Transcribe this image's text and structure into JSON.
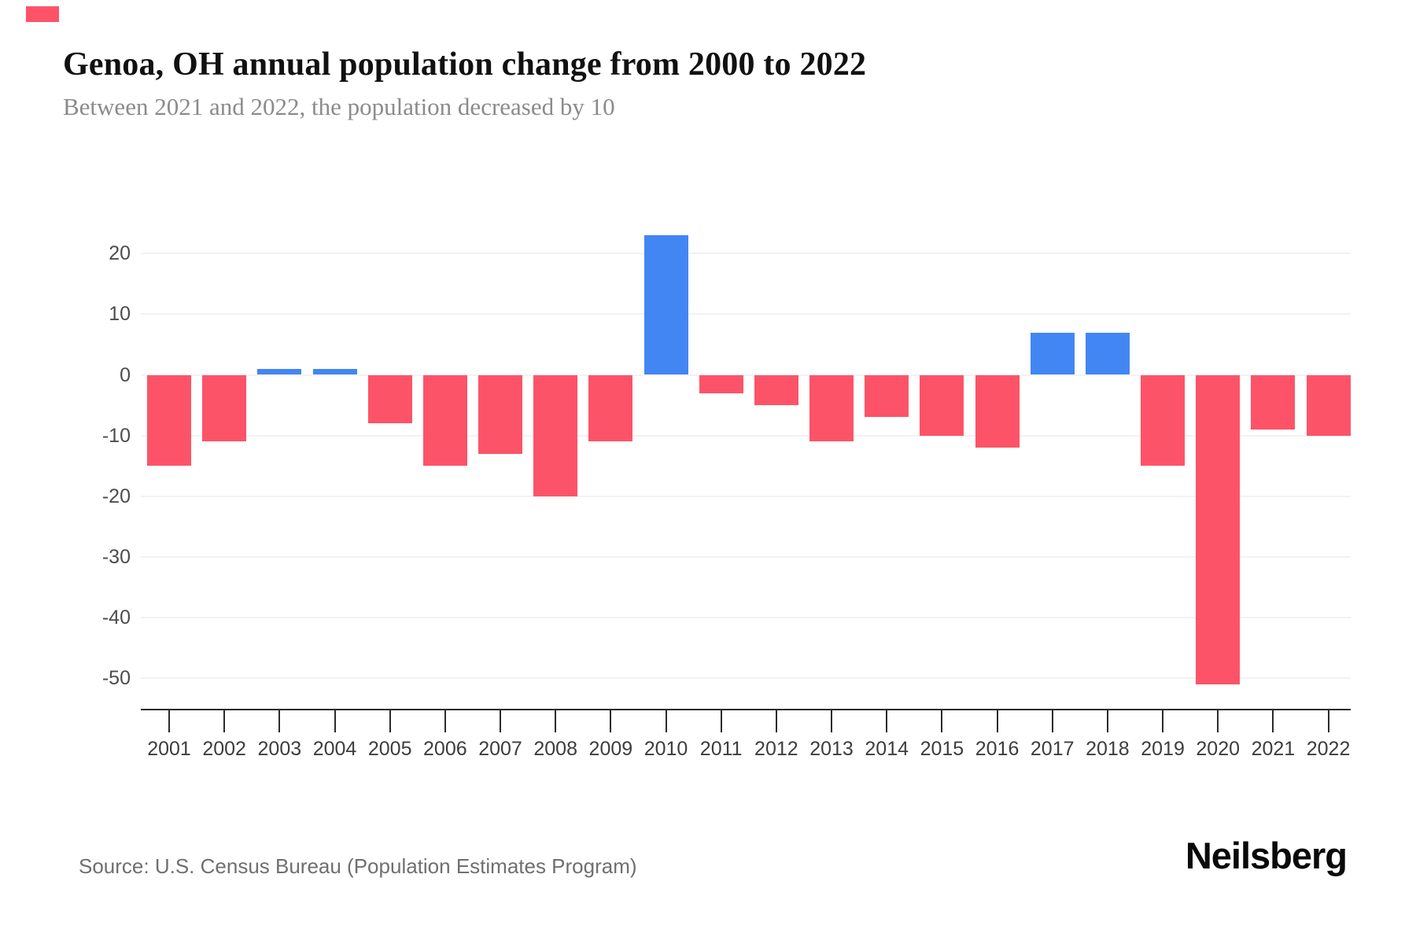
{
  "header": {
    "title": "Genoa, OH annual population change from 2000 to 2022",
    "subtitle": "Between 2021 and 2022, the population decreased by 10"
  },
  "footer": {
    "source": "Source: U.S. Census Bureau (Population Estimates Program)",
    "brand": "Neilsberg"
  },
  "decoration": {
    "corner_marker_color": "#fd5368"
  },
  "chart_data": {
    "type": "bar",
    "title": "Genoa, OH annual population change from 2000 to 2022",
    "subtitle": "Between 2021 and 2022, the population decreased by 10",
    "xlabel": "",
    "ylabel": "",
    "categories": [
      "2001",
      "2002",
      "2003",
      "2004",
      "2005",
      "2006",
      "2007",
      "2008",
      "2009",
      "2010",
      "2011",
      "2012",
      "2013",
      "2014",
      "2015",
      "2016",
      "2017",
      "2018",
      "2019",
      "2020",
      "2021",
      "2022"
    ],
    "values": [
      -15,
      -11,
      1,
      1,
      -8,
      -15,
      -13,
      -20,
      -11,
      23,
      -3,
      -5,
      -11,
      -7,
      -10,
      -12,
      7,
      7,
      -15,
      -51,
      -9,
      -10
    ],
    "yticks": [
      20,
      10,
      0,
      -10,
      -20,
      -30,
      -40,
      -50
    ],
    "ylim": [
      -55,
      30
    ],
    "grid": true,
    "legend": false,
    "colors": {
      "positive": "#4286f4",
      "negative": "#fd5368"
    }
  }
}
